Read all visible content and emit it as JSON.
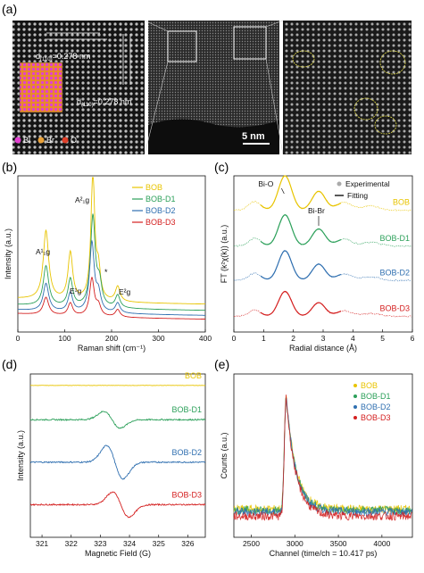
{
  "figure": {
    "panel_letters": [
      "(a)",
      "(b)",
      "(c)",
      "(d)",
      "(e)"
    ]
  },
  "panel_a": {
    "d_labels": [
      "d(110)=0.278 nm",
      "d(110)=0.278 nm"
    ],
    "d_main": "d",
    "d_sub": "(110)",
    "d_value": "=0.278 nm",
    "legend": [
      "Bi",
      "Br",
      "O"
    ],
    "legend_colors": [
      "#e23fd0",
      "#e8a13a",
      "#e0402a"
    ],
    "scale_bar": "5 nm"
  },
  "chart_data": [
    {
      "panel": "b",
      "type": "line",
      "xlabel": "Raman shift (cm⁻¹)",
      "ylabel": "Intensity (a.u.)",
      "xlim": [
        0,
        400
      ],
      "xticks": [
        0,
        100,
        200,
        300,
        400
      ],
      "legend": [
        "BOB",
        "BOB-D1",
        "BOB-D2",
        "BOB-D3"
      ],
      "colors": [
        "#e8c400",
        "#2ca05a",
        "#2f6fb0",
        "#d42020"
      ],
      "annotations": [
        "A¹₁g",
        "E¹g",
        "A²₁g",
        "E²g",
        "*"
      ],
      "series": [
        {
          "name": "BOB",
          "peaks": [
            [
              60,
              0.55,
              7
            ],
            [
              112,
              0.38,
              6
            ],
            [
              160,
              1.0,
              5
            ],
            [
              172,
              0.22,
              5
            ],
            [
              213,
              0.12,
              6
            ]
          ],
          "baseline": 0.15
        },
        {
          "name": "BOB-D1",
          "peaks": [
            [
              60,
              0.32,
              7
            ],
            [
              112,
              0.22,
              6
            ],
            [
              160,
              0.72,
              6
            ],
            [
              174,
              0.18,
              6
            ],
            [
              213,
              0.1,
              6
            ]
          ],
          "baseline": 0.1
        },
        {
          "name": "BOB-D2",
          "peaks": [
            [
              60,
              0.22,
              7
            ],
            [
              112,
              0.15,
              6
            ],
            [
              158,
              0.55,
              6
            ],
            [
              172,
              0.14,
              6
            ],
            [
              213,
              0.08,
              6
            ]
          ],
          "baseline": 0.06
        },
        {
          "name": "BOB-D3",
          "peaks": [
            [
              60,
              0.14,
              7
            ],
            [
              112,
              0.1,
              6
            ],
            [
              158,
              0.3,
              6
            ],
            [
              172,
              0.08,
              6
            ],
            [
              213,
              0.06,
              6
            ]
          ],
          "baseline": 0.03
        }
      ]
    },
    {
      "panel": "c",
      "type": "line",
      "xlabel": "Radial distance (Å)",
      "ylabel": "FT (k²χ(k)) (a.u.)",
      "xlim": [
        0,
        6
      ],
      "xticks": [
        0,
        1,
        2,
        3,
        4,
        5,
        6
      ],
      "legend": [
        "Experimental",
        "Fitting"
      ],
      "series_labels": [
        "BOB",
        "BOB-D1",
        "BOB-D2",
        "BOB-D3"
      ],
      "colors": [
        "#e8c400",
        "#2ca05a",
        "#2f6fb0",
        "#d42020"
      ],
      "annotations": [
        "Bi-O",
        "Bi-Br"
      ],
      "peaks": [
        [
          1.72,
          1.0,
          0.22
        ],
        [
          2.85,
          0.55,
          0.22
        ],
        [
          0.7,
          0.25,
          0.2
        ],
        [
          3.7,
          0.22,
          0.25
        ],
        [
          4.6,
          0.12,
          0.3
        ]
      ],
      "offsets": [
        0.78,
        0.55,
        0.33,
        0.1
      ],
      "scales": [
        0.22,
        0.2,
        0.19,
        0.16
      ]
    },
    {
      "panel": "d",
      "type": "line",
      "xlabel": "Magnetic Field (G)",
      "ylabel": "Intensity (a.u.)",
      "xlim": [
        320.6,
        326.6
      ],
      "xticks": [
        321,
        322,
        323,
        324,
        325,
        326
      ],
      "series": [
        {
          "name": "BOB",
          "center": 323.6,
          "amp": 0.0,
          "offset": 0.93
        },
        {
          "name": "BOB-D1",
          "center": 323.4,
          "amp": 0.06,
          "offset": 0.72
        },
        {
          "name": "BOB-D2",
          "center": 323.5,
          "amp": 0.12,
          "offset": 0.46
        },
        {
          "name": "BOB-D3",
          "center": 323.7,
          "amp": 0.09,
          "offset": 0.2
        }
      ],
      "colors": [
        "#e8c400",
        "#2ca05a",
        "#2f6fb0",
        "#d42020"
      ]
    },
    {
      "panel": "e",
      "type": "line",
      "xlabel": "Channel (time/ch = 10.417 ps)",
      "ylabel": "Counts (a.u.)",
      "xlim": [
        2300,
        4350
      ],
      "xticks": [
        2500,
        3000,
        3500,
        4000
      ],
      "legend": [
        "BOB",
        "BOB-D1",
        "BOB-D2",
        "BOB-D3"
      ],
      "colors": [
        "#e8c400",
        "#2ca05a",
        "#2f6fb0",
        "#d42020"
      ],
      "peak_channel": 2900,
      "baselines": [
        0.2,
        0.19,
        0.18,
        0.15
      ]
    }
  ]
}
